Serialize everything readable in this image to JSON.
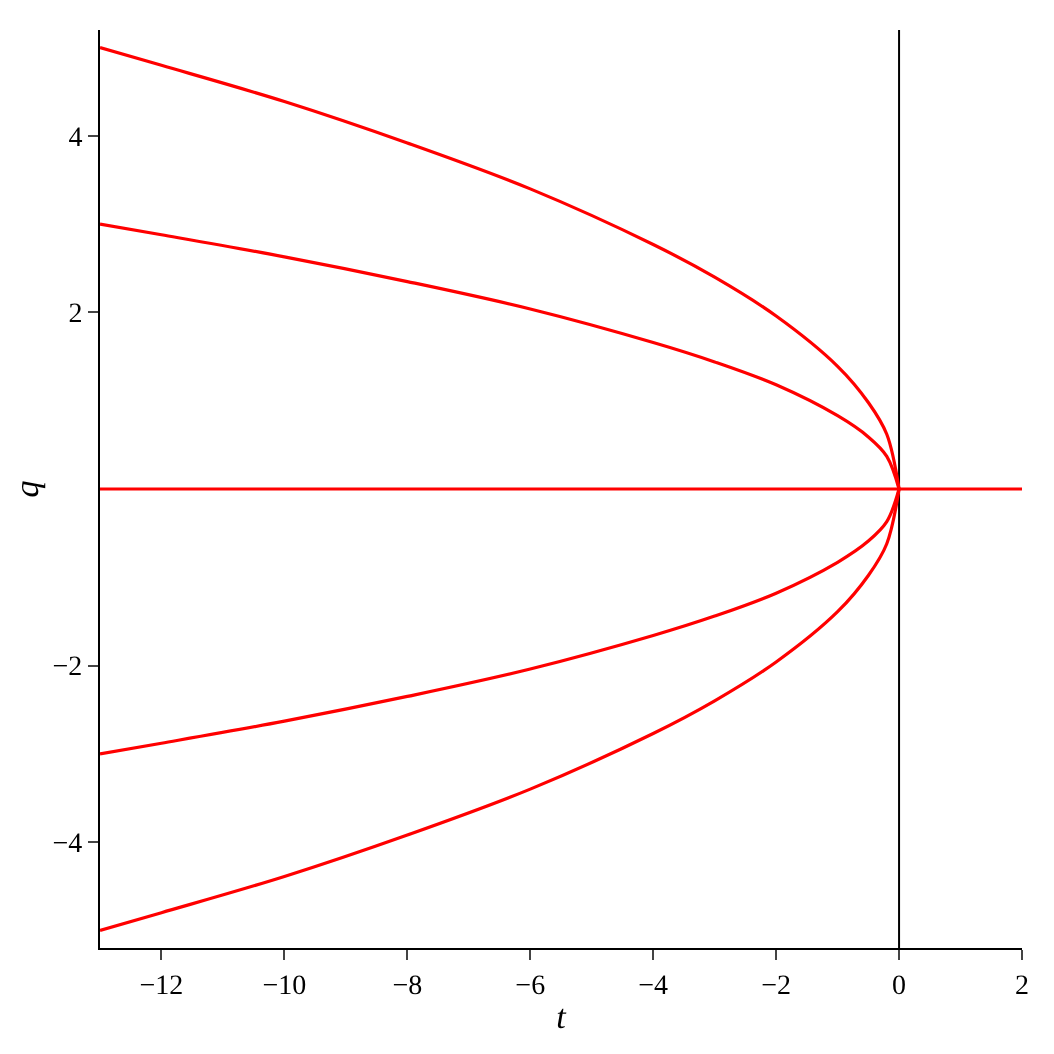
{
  "chart_data": {
    "type": "line",
    "xlabel": "t",
    "ylabel": "q",
    "xlim": [
      -13,
      2
    ],
    "ylim": [
      -5.2,
      5.2
    ],
    "xticks": [
      {
        "value": -12,
        "label": "−12"
      },
      {
        "value": -10,
        "label": "−10"
      },
      {
        "value": -8,
        "label": "−8"
      },
      {
        "value": -6,
        "label": "−6"
      },
      {
        "value": -4,
        "label": "−4"
      },
      {
        "value": -2,
        "label": "−2"
      },
      0,
      2
    ],
    "yticks": [
      {
        "value": -4,
        "label": "−4"
      },
      {
        "value": -2,
        "label": "−2"
      },
      2,
      4
    ],
    "grid": false,
    "ref_lines": [
      {
        "axis": "x",
        "value": 0,
        "color": "#000000"
      }
    ],
    "marker": "none",
    "line_style": "solid",
    "x": [
      -13,
      -12,
      -10,
      -8,
      -6,
      -4,
      -3,
      -2,
      -1,
      -0.5,
      -0.2,
      0
    ],
    "series": [
      {
        "color": "#ff0000",
        "values": [
          5,
          4.8,
          4.39,
          3.92,
          3.4,
          2.77,
          2.4,
          1.96,
          1.39,
          0.98,
          0.62,
          0
        ]
      },
      {
        "color": "#ff0000",
        "values": [
          3,
          2.88,
          2.63,
          2.35,
          2.04,
          1.66,
          1.44,
          1.18,
          0.83,
          0.59,
          0.37,
          0
        ]
      },
      {
        "color": "#ff0000",
        "values": [
          -3,
          -2.88,
          -2.63,
          -2.35,
          -2.04,
          -1.66,
          -1.44,
          -1.18,
          -0.83,
          -0.59,
          -0.37,
          0
        ]
      },
      {
        "color": "#ff0000",
        "values": [
          -5,
          -4.8,
          -4.39,
          -3.92,
          -3.4,
          -2.77,
          -2.4,
          -1.96,
          -1.39,
          -0.98,
          -0.62,
          0
        ]
      },
      {
        "color": "#ff0000",
        "x": [
          -13,
          2
        ],
        "values": [
          0,
          0
        ]
      }
    ]
  }
}
